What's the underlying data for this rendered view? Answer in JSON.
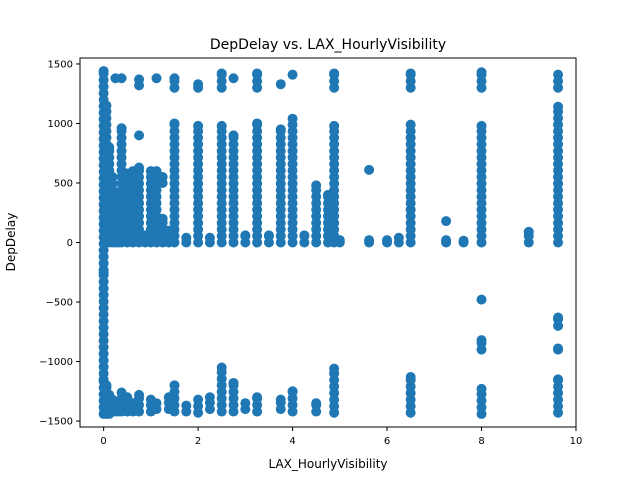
{
  "chart_data": {
    "type": "scatter",
    "title": "DepDelay vs. LAX_HourlyVisibility",
    "xlabel": "LAX_HourlyVisibility",
    "ylabel": "DepDelay",
    "xlim": [
      -0.5,
      10.0
    ],
    "ylim": [
      -1550,
      1550
    ],
    "xticks": [
      0,
      2,
      4,
      6,
      8,
      10
    ],
    "yticks": [
      -1500,
      -1000,
      -500,
      0,
      500,
      1000,
      1500
    ],
    "xtick_labels": [
      "0",
      "2",
      "4",
      "6",
      "8",
      "10"
    ],
    "ytick_labels": [
      "−1500",
      "−1000",
      "−500",
      "0",
      "500",
      "1000",
      "1500"
    ],
    "grid": false,
    "color": "#1f77b4",
    "columns": [
      {
        "x": 0.0,
        "ranges": [
          [
            -1440,
            -1150
          ],
          [
            -1100,
            -250
          ],
          [
            -230,
            1440
          ]
        ]
      },
      {
        "x": 0.06,
        "ranges": [
          [
            -1440,
            -1200
          ],
          [
            0,
            1150
          ]
        ]
      },
      {
        "x": 0.12,
        "ranges": [
          [
            -1440,
            -1280
          ],
          [
            0,
            800
          ]
        ]
      },
      {
        "x": 0.19,
        "ranges": [
          [
            -1420,
            -1320
          ],
          [
            0,
            550
          ]
        ]
      },
      {
        "x": 0.25,
        "ranges": [
          [
            -1420,
            -1350
          ],
          [
            0,
            400
          ],
          [
            1380,
            1380
          ]
        ]
      },
      {
        "x": 0.31,
        "ranges": [
          [
            -1420,
            -1350
          ],
          [
            0,
            150
          ]
        ]
      },
      {
        "x": 0.38,
        "ranges": [
          [
            -1420,
            -1260
          ],
          [
            0,
            960
          ],
          [
            1380,
            1380
          ]
        ]
      },
      {
        "x": 0.5,
        "ranges": [
          [
            -1420,
            -1300
          ],
          [
            0,
            580
          ]
        ]
      },
      {
        "x": 0.62,
        "ranges": [
          [
            -1420,
            -1350
          ],
          [
            0,
            600
          ]
        ]
      },
      {
        "x": 0.75,
        "ranges": [
          [
            -1420,
            -1280
          ],
          [
            0,
            630
          ],
          [
            900,
            900
          ],
          [
            1320,
            1370
          ]
        ]
      },
      {
        "x": 0.88,
        "ranges": [
          [
            0,
            60
          ]
        ]
      },
      {
        "x": 1.0,
        "ranges": [
          [
            -1420,
            -1320
          ],
          [
            0,
            600
          ]
        ]
      },
      {
        "x": 1.12,
        "ranges": [
          [
            -1400,
            -1350
          ],
          [
            0,
            600
          ],
          [
            1380,
            1380
          ]
        ]
      },
      {
        "x": 1.25,
        "ranges": [
          [
            0,
            200
          ],
          [
            500,
            550
          ]
        ]
      },
      {
        "x": 1.38,
        "ranges": [
          [
            -1400,
            -1300
          ],
          [
            0,
            100
          ]
        ]
      },
      {
        "x": 1.5,
        "ranges": [
          [
            -1420,
            -1200
          ],
          [
            0,
            1000
          ],
          [
            1300,
            1380
          ]
        ]
      },
      {
        "x": 1.75,
        "ranges": [
          [
            -1420,
            -1370
          ],
          [
            0,
            40
          ]
        ]
      },
      {
        "x": 2.0,
        "ranges": [
          [
            -1430,
            -1320
          ],
          [
            0,
            980
          ],
          [
            1300,
            1330
          ]
        ]
      },
      {
        "x": 2.25,
        "ranges": [
          [
            -1400,
            -1300
          ],
          [
            0,
            40
          ]
        ]
      },
      {
        "x": 2.5,
        "ranges": [
          [
            -1420,
            -1050
          ],
          [
            0,
            980
          ],
          [
            1300,
            1420
          ]
        ]
      },
      {
        "x": 2.75,
        "ranges": [
          [
            -1420,
            -1180
          ],
          [
            0,
            900
          ],
          [
            1380,
            1380
          ]
        ]
      },
      {
        "x": 3.0,
        "ranges": [
          [
            -1400,
            -1350
          ],
          [
            0,
            60
          ]
        ]
      },
      {
        "x": 3.25,
        "ranges": [
          [
            -1420,
            -1300
          ],
          [
            0,
            1000
          ],
          [
            1300,
            1420
          ]
        ]
      },
      {
        "x": 3.5,
        "ranges": [
          [
            0,
            60
          ]
        ]
      },
      {
        "x": 3.75,
        "ranges": [
          [
            -1400,
            -1320
          ],
          [
            0,
            950
          ],
          [
            1330,
            1330
          ]
        ]
      },
      {
        "x": 4.0,
        "ranges": [
          [
            -1420,
            -1250
          ],
          [
            0,
            1040
          ],
          [
            1410,
            1410
          ]
        ]
      },
      {
        "x": 4.25,
        "ranges": [
          [
            0,
            60
          ]
        ]
      },
      {
        "x": 4.5,
        "ranges": [
          [
            -1420,
            -1350
          ],
          [
            0,
            480
          ]
        ]
      },
      {
        "x": 4.75,
        "ranges": [
          [
            0,
            400
          ]
        ]
      },
      {
        "x": 4.88,
        "ranges": [
          [
            -1430,
            -1060
          ],
          [
            0,
            980
          ],
          [
            1300,
            1420
          ]
        ]
      },
      {
        "x": 5.0,
        "ranges": [
          [
            0,
            20
          ]
        ]
      },
      {
        "x": 5.62,
        "ranges": [
          [
            0,
            20
          ],
          [
            610,
            610
          ]
        ]
      },
      {
        "x": 6.0,
        "ranges": [
          [
            0,
            20
          ]
        ]
      },
      {
        "x": 6.25,
        "ranges": [
          [
            0,
            40
          ]
        ]
      },
      {
        "x": 6.5,
        "ranges": [
          [
            -1430,
            -1130
          ],
          [
            0,
            990
          ],
          [
            1300,
            1420
          ]
        ]
      },
      {
        "x": 7.25,
        "ranges": [
          [
            0,
            20
          ],
          [
            180,
            180
          ]
        ]
      },
      {
        "x": 7.62,
        "ranges": [
          [
            0,
            15
          ]
        ]
      },
      {
        "x": 8.0,
        "ranges": [
          [
            -1440,
            -1230
          ],
          [
            -900,
            -820
          ],
          [
            -480,
            -480
          ],
          [
            0,
            980
          ],
          [
            1300,
            1430
          ]
        ]
      },
      {
        "x": 9.0,
        "ranges": [
          [
            0,
            90
          ]
        ]
      },
      {
        "x": 9.62,
        "ranges": [
          [
            -1430,
            -1150
          ],
          [
            -900,
            -890
          ],
          [
            -700,
            -630
          ],
          [
            0,
            1140
          ],
          [
            1300,
            1410
          ]
        ]
      }
    ]
  }
}
